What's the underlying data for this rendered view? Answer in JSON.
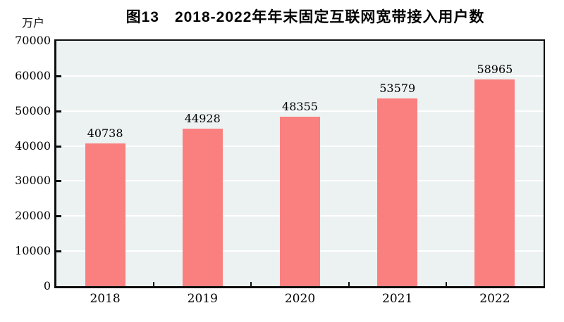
{
  "chart_data": {
    "type": "bar",
    "title": "图13　2018-2022年年末固定互联网宽带接入用户数",
    "unit_label": "万户",
    "categories": [
      "2018",
      "2019",
      "2020",
      "2021",
      "2022"
    ],
    "values": [
      40738,
      44928,
      48355,
      53579,
      58965
    ],
    "data_labels": [
      "40738",
      "44928",
      "48355",
      "53579",
      "58965"
    ],
    "ylim": [
      0,
      70000
    ],
    "ytick_step": 10000,
    "ytick_labels": [
      "0",
      "10000",
      "20000",
      "30000",
      "40000",
      "50000",
      "60000",
      "70000"
    ],
    "grid": true,
    "legend": "none",
    "colors": {
      "bar_fill": "#FA8080",
      "plot_background": "#ECF2F1",
      "gridline": "#FFFFFF",
      "axis": "#0D0D0D",
      "text": "#000000"
    }
  }
}
